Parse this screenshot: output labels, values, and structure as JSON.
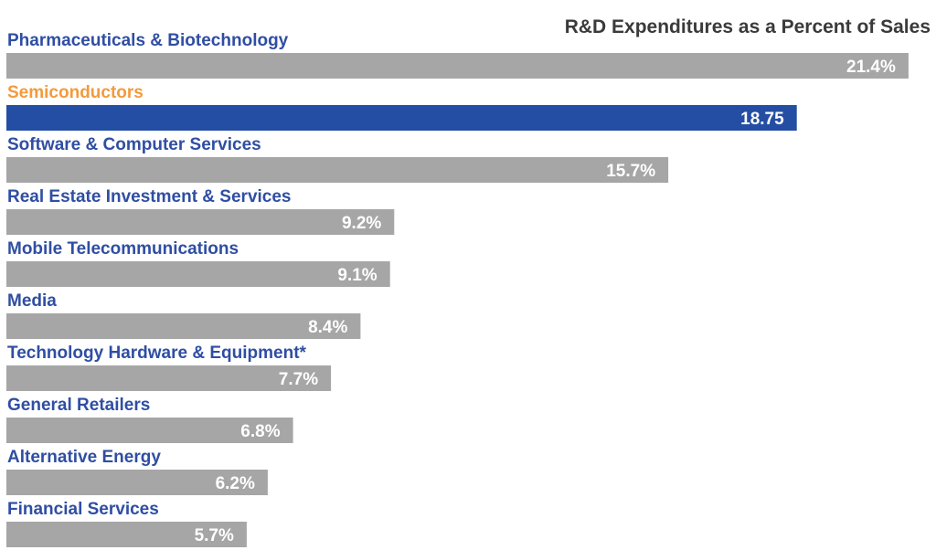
{
  "chart_data": {
    "type": "bar",
    "orientation": "horizontal",
    "title": "R&D Expenditures as a Percent of Sales",
    "xlabel": "",
    "ylabel": "",
    "xlim": [
      0,
      21.9
    ],
    "grid": false,
    "legend": "none",
    "categories": [
      "Pharmaceuticals & Biotechnology",
      "Semiconductors",
      "Software & Computer Services",
      "Real Estate Investment & Services",
      "Mobile Telecommunications",
      "Media",
      "Technology Hardware & Equipment*",
      "General Retailers",
      "Alternative Energy",
      "Financial Services"
    ],
    "values": [
      21.4,
      18.75,
      15.7,
      9.2,
      9.1,
      8.4,
      7.7,
      6.8,
      6.2,
      5.7
    ],
    "value_labels": [
      "21.4%",
      "18.75",
      "15.7%",
      "9.2%",
      "9.1%",
      "8.4%",
      "7.7%",
      "6.8%",
      "6.2%",
      "5.7%"
    ],
    "highlight_index": 1,
    "colors": {
      "bar": "#a6a6a6",
      "bar_highlight": "#244ea3",
      "label": "#2f4ea3",
      "label_highlight": "#f39a3c",
      "title": "#3a3a3a",
      "value_text": "#ffffff"
    }
  }
}
